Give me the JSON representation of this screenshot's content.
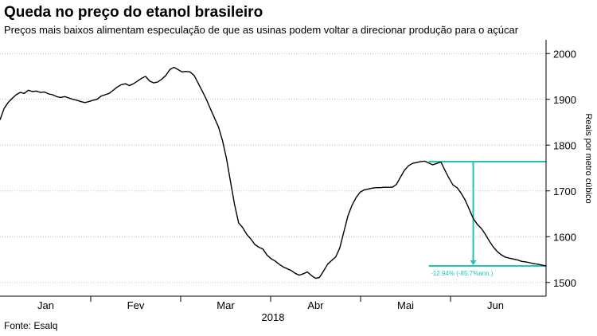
{
  "header": {
    "title": "Queda no preço do etanol brasileiro",
    "subtitle": "Preços mais baixos alimentam especulação de que as usinas podem voltar a direcionar produção para o açúcar"
  },
  "footer": {
    "source": "Fonte: Esalq"
  },
  "chart_data": {
    "type": "line",
    "ylabel": "Reais por metro cúbico",
    "xlabel": "2018",
    "ylim": [
      1470,
      2030
    ],
    "y_ticks": [
      1500,
      1600,
      1700,
      1800,
      1900,
      2000
    ],
    "y_tick_labels": [
      "1500",
      "1600",
      "1700",
      "1800",
      "1900",
      "2000"
    ],
    "grid": "horizontal dotted",
    "x_range": [
      0,
      27
    ],
    "x_tick_labels": [
      "Jan",
      "Fev",
      "Mar",
      "Abr",
      "Mai",
      "Jun"
    ],
    "series": [
      {
        "color": "#000000",
        "x": [
          0,
          0.2,
          0.4,
          0.6,
          0.8,
          1.0,
          1.2,
          1.4,
          1.6,
          1.8,
          2.0,
          2.2,
          2.4,
          2.6,
          2.8,
          3.0,
          3.2,
          3.4,
          3.6,
          3.8,
          4.0,
          4.2,
          4.4,
          4.6,
          4.8,
          5.0,
          5.2,
          5.4,
          5.6,
          5.8,
          6.0,
          6.2,
          6.4,
          6.6,
          6.8,
          7.0,
          7.2,
          7.4,
          7.6,
          7.8,
          8.0,
          8.2,
          8.4,
          8.6,
          8.8,
          9.0,
          9.2,
          9.4,
          9.6,
          9.8,
          10.0,
          10.2,
          10.4,
          10.6,
          10.8,
          11.0,
          11.2,
          11.4,
          11.6,
          11.8,
          12.0,
          12.2,
          12.4,
          12.6,
          12.8,
          13.0,
          13.2,
          13.4,
          13.6,
          13.8,
          14.0,
          14.2,
          14.4,
          14.6,
          14.8,
          15.0,
          15.2,
          15.4,
          15.6,
          15.8,
          16.0,
          16.2,
          16.4,
          16.6,
          16.8,
          17.0,
          17.2,
          17.4,
          17.6,
          17.8,
          18.0,
          18.2,
          18.4,
          18.6,
          18.8,
          19.0,
          19.2,
          19.4,
          19.6,
          19.8,
          20.0,
          20.2,
          20.4,
          20.6,
          20.8,
          21.0,
          21.2,
          21.4,
          21.6,
          21.8,
          22.0,
          22.2,
          22.4,
          22.6,
          22.8,
          23.0,
          23.2,
          23.4,
          23.6,
          23.8,
          24.0,
          24.2,
          24.4,
          24.6,
          24.8,
          25.0,
          25.2,
          25.4,
          25.6,
          25.8,
          26.0,
          26.2,
          26.4,
          26.6,
          26.8,
          27.0
        ],
        "y": [
          1855,
          1880,
          1893,
          1902,
          1910,
          1915,
          1913,
          1920,
          1917,
          1918,
          1915,
          1916,
          1912,
          1910,
          1906,
          1904,
          1906,
          1903,
          1900,
          1898,
          1895,
          1893,
          1895,
          1898,
          1900,
          1907,
          1910,
          1913,
          1920,
          1927,
          1932,
          1934,
          1930,
          1934,
          1940,
          1946,
          1950,
          1940,
          1936,
          1938,
          1944,
          1952,
          1965,
          1970,
          1965,
          1960,
          1961,
          1960,
          1952,
          1935,
          1918,
          1900,
          1880,
          1860,
          1840,
          1810,
          1770,
          1720,
          1670,
          1630,
          1620,
          1605,
          1595,
          1583,
          1577,
          1573,
          1560,
          1552,
          1547,
          1540,
          1534,
          1530,
          1526,
          1520,
          1516,
          1519,
          1523,
          1515,
          1509,
          1511,
          1525,
          1540,
          1548,
          1556,
          1575,
          1610,
          1645,
          1668,
          1685,
          1697,
          1702,
          1704,
          1706,
          1707,
          1707,
          1708,
          1708,
          1708,
          1714,
          1730,
          1745,
          1755,
          1760,
          1762,
          1764,
          1765,
          1761,
          1757,
          1760,
          1763,
          1745,
          1728,
          1713,
          1707,
          1695,
          1680,
          1660,
          1640,
          1627,
          1618,
          1605,
          1590,
          1577,
          1567,
          1560,
          1555,
          1553,
          1551,
          1549,
          1546,
          1545,
          1543,
          1541,
          1540,
          1538,
          1536
        ]
      }
    ],
    "annotation": {
      "color": "#1ec8b4",
      "high": 1764,
      "low": 1536,
      "label": "-12.94% (-85.7%ann.)"
    }
  }
}
